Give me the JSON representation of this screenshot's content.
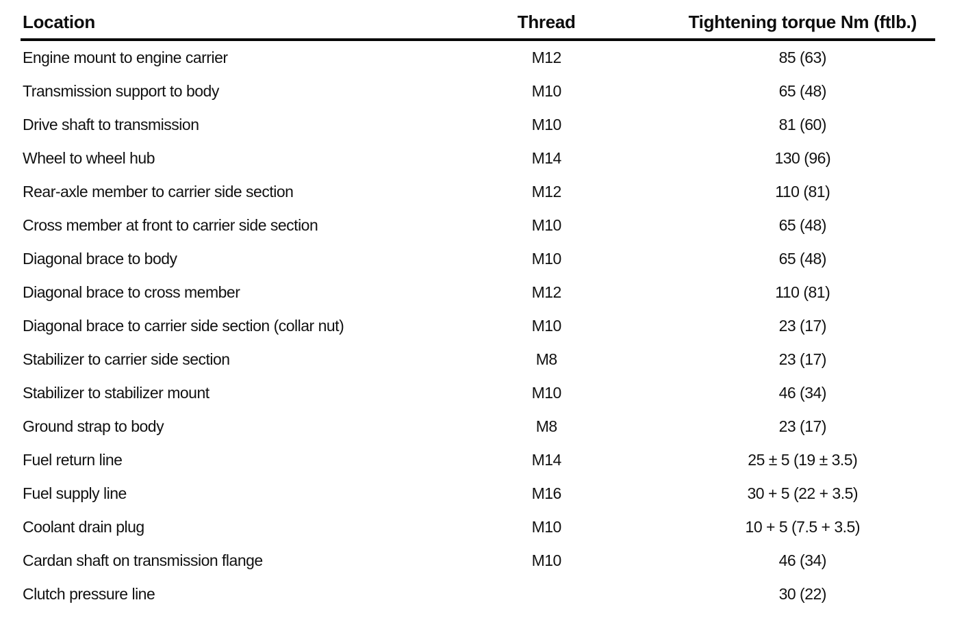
{
  "table": {
    "columns": [
      {
        "key": "location",
        "label": "Location"
      },
      {
        "key": "thread",
        "label": "Thread"
      },
      {
        "key": "torque",
        "label": "Tightening torque Nm (ftlb.)"
      }
    ],
    "rows": [
      {
        "location": "Engine mount to engine carrier",
        "thread": "M12",
        "torque": "85 (63)"
      },
      {
        "location": "Transmission support to body",
        "thread": "M10",
        "torque": "65 (48)"
      },
      {
        "location": "Drive shaft to transmission",
        "thread": "M10",
        "torque": "81 (60)"
      },
      {
        "location": "Wheel to wheel hub",
        "thread": "M14",
        "torque": "130 (96)"
      },
      {
        "location": "Rear-axle member to carrier side section",
        "thread": "M12",
        "torque": "110 (81)"
      },
      {
        "location": "Cross member at front to carrier side section",
        "thread": "M10",
        "torque": "65 (48)"
      },
      {
        "location": "Diagonal brace to body",
        "thread": "M10",
        "torque": "65 (48)"
      },
      {
        "location": "Diagonal brace to cross member",
        "thread": "M12",
        "torque": "110 (81)"
      },
      {
        "location": "Diagonal brace to carrier side section (collar nut)",
        "thread": "M10",
        "torque": "23 (17)"
      },
      {
        "location": "Stabilizer to carrier side section",
        "thread": "M8",
        "torque": "23 (17)"
      },
      {
        "location": "Stabilizer to stabilizer mount",
        "thread": "M10",
        "torque": "46 (34)"
      },
      {
        "location": "Ground strap to body",
        "thread": "M8",
        "torque": "23 (17)"
      },
      {
        "location": "Fuel return line",
        "thread": "M14",
        "torque": "25 ± 5 (19 ± 3.5)"
      },
      {
        "location": "Fuel supply line",
        "thread": "M16",
        "torque": "30 + 5 (22 + 3.5)"
      },
      {
        "location": "Coolant drain plug",
        "thread": "M10",
        "torque": "10 + 5 (7.5 + 3.5)"
      },
      {
        "location": "Cardan shaft on transmission flange",
        "thread": "M10",
        "torque": "46 (34)"
      },
      {
        "location": "Clutch pressure line",
        "thread": "",
        "torque": "30 (22)"
      }
    ]
  },
  "colors": {
    "text": "#0d0d0d",
    "rule": "#050505",
    "background": "#ffffff"
  }
}
